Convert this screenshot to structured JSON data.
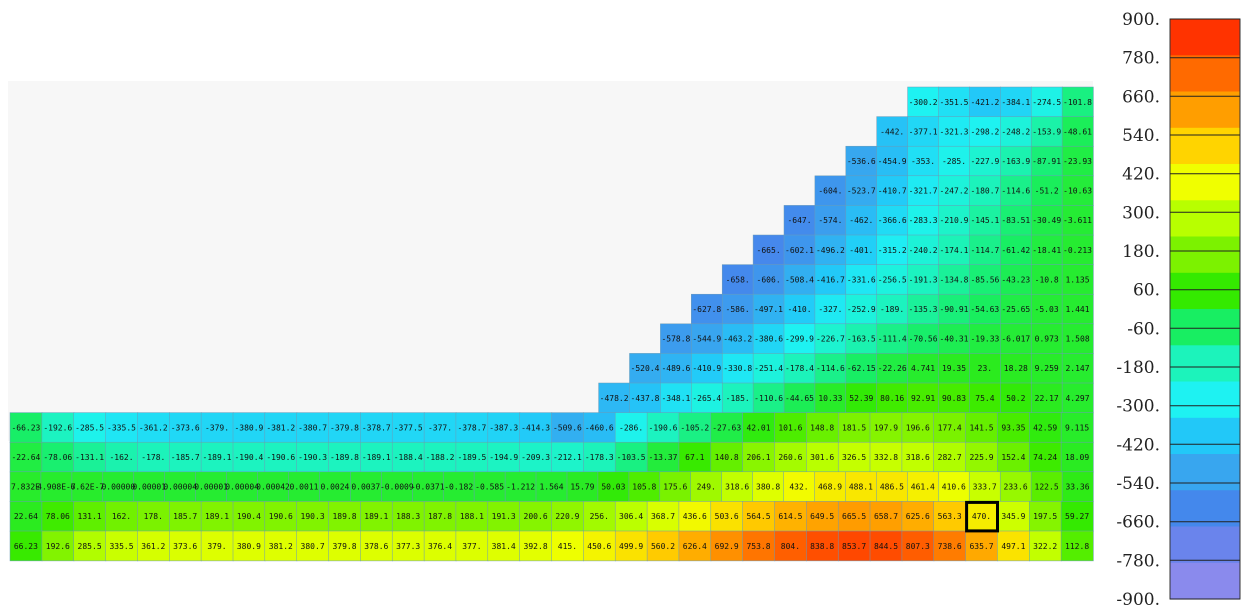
{
  "chart_data": {
    "type": "heatmap",
    "title": "",
    "xlabel": "",
    "ylabel": "",
    "colorbar": {
      "min": -900,
      "max": 900,
      "ticks": [
        "900.",
        "780.",
        "660.",
        "540.",
        "420.",
        "300.",
        "180.",
        "60.",
        "-60.",
        "-180.",
        "-300.",
        "-420.",
        "-540.",
        "-660.",
        "-780.",
        "-900."
      ],
      "colors": [
        "#ff3300",
        "#ff6a00",
        "#ff9e00",
        "#ffd400",
        "#f0ff00",
        "#b8ff00",
        "#7cf200",
        "#34ea00",
        "#18ee62",
        "#1cf3bb",
        "#1ef2f2",
        "#22c8f8",
        "#38a6ef",
        "#4488ec",
        "#6a84ec",
        "#8a8aed"
      ]
    },
    "highlight": {
      "row": 14,
      "col": 30
    },
    "rows": [
      {
        "start": 32,
        "values": [
          "-300.2",
          "-351.5",
          "-421.2",
          "-384.1",
          "-274.5",
          "-101.8"
        ]
      },
      {
        "start": 30,
        "values": [
          "-442.",
          "-377.1",
          "-321.3",
          "-298.2",
          "-248.2",
          "-153.9",
          "-48.61"
        ]
      },
      {
        "start": 29,
        "values": [
          "-536.6",
          "-454.9",
          "-353.",
          "-285.",
          "-227.9",
          "-163.9",
          "-87.91",
          "-23.93"
        ]
      },
      {
        "start": 28,
        "values": [
          "-604.",
          "-523.7",
          "-410.7",
          "-321.7",
          "-247.2",
          "-180.7",
          "-114.6",
          "-51.2",
          "-10.63"
        ]
      },
      {
        "start": 27,
        "values": [
          "-647.",
          "-574.",
          "-462.",
          "-366.6",
          "-283.3",
          "-210.9",
          "-145.1",
          "-83.51",
          "-30.49",
          "-3.611"
        ]
      },
      {
        "start": 26,
        "values": [
          "-665.",
          "-602.1",
          "-496.2",
          "-401.",
          "-315.2",
          "-240.2",
          "-174.1",
          "-114.7",
          "-61.42",
          "-18.41",
          "-0.213"
        ]
      },
      {
        "start": 25,
        "values": [
          "-658.",
          "-606.",
          "-508.4",
          "-416.7",
          "-331.6",
          "-256.5",
          "-191.3",
          "-134.8",
          "-85.56",
          "-43.23",
          "-10.8",
          "1.135"
        ]
      },
      {
        "start": 24,
        "values": [
          "-627.8",
          "-586.",
          "-497.1",
          "-410.",
          "-327.",
          "-252.9",
          "-189.",
          "-135.3",
          "-90.91",
          "-54.63",
          "-25.65",
          "-5.03",
          "1.441"
        ]
      },
      {
        "start": 23,
        "values": [
          "-578.8",
          "-544.9",
          "-463.2",
          "-380.6",
          "-299.9",
          "-226.7",
          "-163.5",
          "-111.4",
          "-70.56",
          "-40.31",
          "-19.33",
          "-6.017",
          "0.973",
          "1.508"
        ]
      },
      {
        "start": 22,
        "values": [
          "-520.4",
          "-489.6",
          "-410.9",
          "-330.8",
          "-251.4",
          "-178.4",
          "-114.6",
          "-62.15",
          "-22.26",
          "4.741",
          "19.35",
          "23.",
          "18.28",
          "9.259",
          "2.147"
        ]
      },
      {
        "start": 21,
        "values": [
          "-478.2",
          "-437.8",
          "-348.1",
          "-265.4",
          "-185.",
          "-110.6",
          "-44.65",
          "10.33",
          "52.39",
          "80.16",
          "92.91",
          "90.83",
          "75.4",
          "50.2",
          "22.17",
          "4.297"
        ]
      },
      {
        "start": 0,
        "values": [
          "-66.23",
          "-192.6",
          "-285.5",
          "-335.5",
          "-361.2",
          "-373.6",
          "-379.",
          "-380.9",
          "-381.2",
          "-380.7",
          "-379.8",
          "-378.7",
          "-377.5",
          "-377.",
          "-378.7",
          "-387.3",
          "-414.3",
          "-509.6",
          "-460.6",
          "-286.",
          "-190.6",
          "-105.2",
          "-27.63",
          "42.01",
          "101.6",
          "148.8",
          "181.5",
          "197.9",
          "196.6",
          "177.4",
          "141.5",
          "93.35",
          "42.59",
          "9.115"
        ]
      },
      {
        "start": 0,
        "values": [
          "-22.64",
          "-78.06",
          "-131.1",
          "-162.",
          "-178.",
          "-185.7",
          "-189.1",
          "-190.4",
          "-190.6",
          "-190.3",
          "-189.8",
          "-189.1",
          "-188.4",
          "-188.2",
          "-189.5",
          "-194.9",
          "-209.3",
          "-212.1",
          "-178.3",
          "-103.5",
          "-13.37",
          "67.1",
          "140.8",
          "206.1",
          "260.6",
          "301.6",
          "326.5",
          "332.8",
          "318.6",
          "282.7",
          "225.9",
          "152.4",
          "74.24",
          "18.09"
        ]
      },
      {
        "start": 0,
        "values": [
          "7.832E",
          "4.908E-7",
          "6.62E-7",
          "0.00000",
          "0.00001",
          "0.00004",
          "0.00001",
          "0.00004",
          "0.00042",
          "0.0011",
          "0.0024",
          "0.0037",
          "-0.0009",
          "-0.0371",
          "-0.182",
          "-0.585",
          "-1.212",
          "1.564",
          "15.79",
          "50.03",
          "105.8",
          "175.6",
          "249.",
          "318.6",
          "380.8",
          "432.",
          "468.9",
          "488.1",
          "486.5",
          "461.4",
          "410.6",
          "333.7",
          "233.6",
          "122.5",
          "33.36"
        ]
      },
      {
        "start": 0,
        "values": [
          "22.64",
          "78.06",
          "131.1",
          "162.",
          "178.",
          "185.7",
          "189.1",
          "190.4",
          "190.6",
          "190.3",
          "189.8",
          "189.1",
          "188.3",
          "187.8",
          "188.1",
          "191.3",
          "200.6",
          "220.9",
          "256.",
          "306.4",
          "368.7",
          "436.6",
          "503.6",
          "564.5",
          "614.5",
          "649.5",
          "665.5",
          "658.7",
          "625.6",
          "563.3",
          "470.",
          "345.9",
          "197.5",
          "59.27"
        ]
      },
      {
        "start": 0,
        "values": [
          "66.23",
          "192.6",
          "285.5",
          "335.5",
          "361.2",
          "373.6",
          "379.",
          "380.9",
          "381.2",
          "380.7",
          "379.8",
          "378.6",
          "377.3",
          "376.4",
          "377.",
          "381.4",
          "392.8",
          "415.",
          "450.6",
          "499.9",
          "560.2",
          "626.4",
          "692.9",
          "753.8",
          "804.",
          "838.8",
          "853.7",
          "844.5",
          "807.3",
          "738.6",
          "635.7",
          "497.1",
          "322.2",
          "112.8"
        ]
      }
    ]
  }
}
